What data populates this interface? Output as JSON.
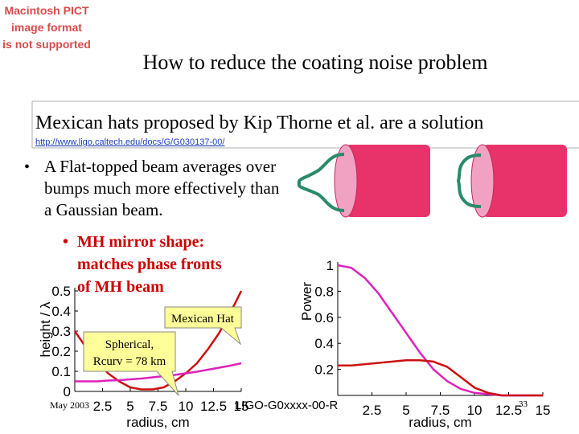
{
  "placeholder": [
    "Macintosh PICT",
    "image format",
    "is not supported"
  ],
  "title": "How to reduce the coating noise problem",
  "subtitle": "Mexican hats proposed by Kip Thorne et al. are a solution",
  "link": "http://www.ligo.caltech.edu/docs/G/G030137-00/",
  "bullets": [
    {
      "lines": [
        "A Flat-topped beam averages over",
        "bumps much more effectively than",
        "a Gaussian beam."
      ]
    },
    {
      "lines": [
        "MH mirror shape:",
        "matches phase fronts",
        "of  MH beam"
      ]
    }
  ],
  "callouts": [
    {
      "lines": [
        "Mexican Hat"
      ]
    },
    {
      "lines": [
        "Spherical,",
        "Rcurv = 78 km"
      ]
    }
  ],
  "footer": {
    "date": "May 2003",
    "doc_id": "LIGO-G0xxxx-00-R",
    "page": "33"
  },
  "chart_data": [
    {
      "type": "line",
      "x_label": "radius, cm",
      "y_label": "height / λ",
      "x": [
        0,
        1,
        2,
        3,
        4,
        5,
        6,
        7,
        8,
        9,
        10,
        11,
        12,
        13,
        14,
        15
      ],
      "series": [
        {
          "name": "Mexican Hat",
          "color": "#cc1111",
          "values": [
            0.3,
            0.22,
            0.15,
            0.09,
            0.05,
            0.02,
            0.01,
            0.01,
            0.02,
            0.05,
            0.09,
            0.14,
            0.21,
            0.29,
            0.39,
            0.5
          ]
        },
        {
          "name": "Spherical",
          "color": "#dd22bb",
          "values": [
            0.05,
            0.05,
            0.05,
            0.054,
            0.056,
            0.06,
            0.064,
            0.07,
            0.076,
            0.082,
            0.09,
            0.098,
            0.108,
            0.118,
            0.128,
            0.14
          ]
        }
      ],
      "xlim": [
        0,
        15
      ],
      "xticks": [
        2.5,
        5,
        7.5,
        10,
        12.5,
        15
      ],
      "ylim": [
        0,
        0.5
      ],
      "yticks": [
        0,
        0.1,
        0.2,
        0.3,
        0.4,
        0.5
      ]
    },
    {
      "type": "line",
      "x_label": "radius, cm",
      "y_label": "Power",
      "x": [
        0,
        1,
        2,
        3,
        4,
        5,
        6,
        7,
        8,
        9,
        10,
        11,
        12,
        13,
        14,
        15
      ],
      "series": [
        {
          "name": "Gaussian",
          "color": "#dd22bb",
          "values": [
            1,
            0.98,
            0.9,
            0.78,
            0.63,
            0.48,
            0.33,
            0.2,
            0.11,
            0.05,
            0.02,
            0.01,
            0,
            0,
            0,
            0
          ]
        },
        {
          "name": "Mexican Hat",
          "color": "#cc1111",
          "values": [
            0.23,
            0.23,
            0.24,
            0.25,
            0.26,
            0.27,
            0.27,
            0.26,
            0.22,
            0.14,
            0.06,
            0.02,
            0,
            0,
            0,
            0
          ]
        }
      ],
      "xlim": [
        0,
        15
      ],
      "xticks": [
        2.5,
        5,
        7.5,
        10,
        12.5,
        15
      ],
      "ylim": [
        0,
        1
      ],
      "yticks": [
        0.2,
        0.4,
        0.6,
        0.8,
        1
      ]
    }
  ]
}
